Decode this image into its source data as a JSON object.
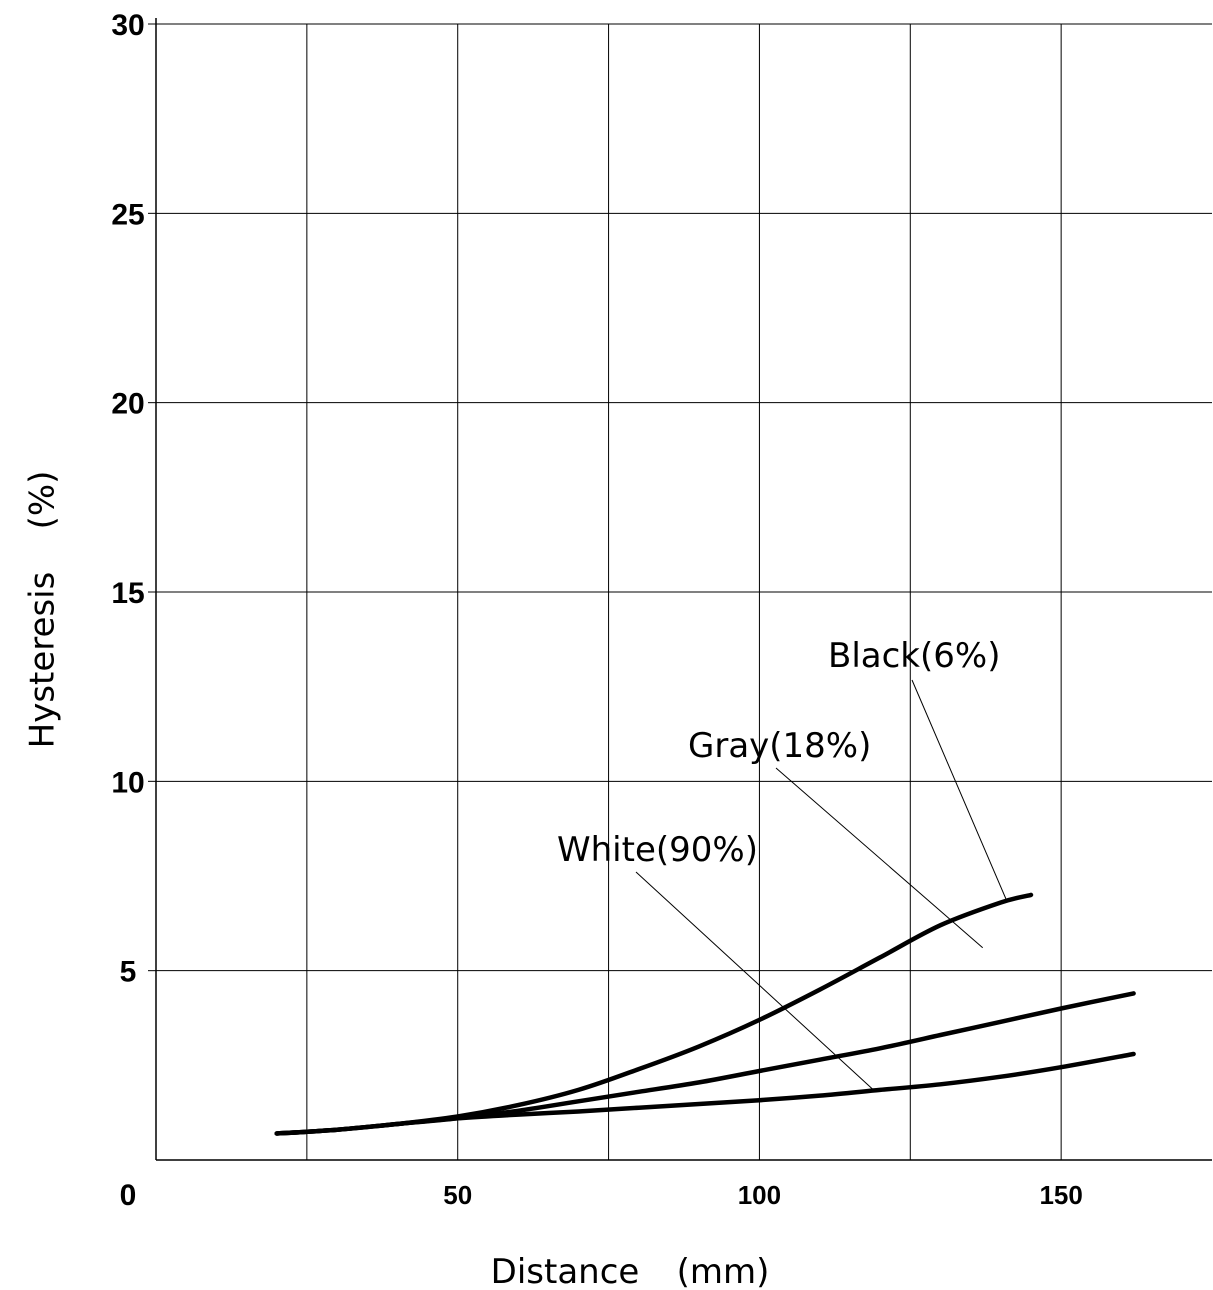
{
  "chart_data": {
    "type": "line",
    "xlabel": "Distance",
    "xunit": "(mm)",
    "ylabel": "Hysteresis",
    "yunit": "(%)",
    "xlim": [
      0,
      175
    ],
    "ylim": [
      0,
      30
    ],
    "x_ticks": [
      50,
      100,
      150
    ],
    "y_ticks": [
      30,
      25,
      20,
      15,
      10,
      5
    ],
    "origin_label": "0",
    "grid": true,
    "series": [
      {
        "name": "Black(6%)",
        "x": [
          20,
          30,
          40,
          50,
          60,
          70,
          80,
          90,
          100,
          110,
          120,
          130,
          140,
          145
        ],
        "y": [
          0.7,
          0.8,
          0.95,
          1.15,
          1.45,
          1.85,
          2.4,
          3.0,
          3.7,
          4.5,
          5.35,
          6.2,
          6.8,
          7.0
        ]
      },
      {
        "name": "Gray(18%)",
        "x": [
          20,
          30,
          40,
          50,
          60,
          70,
          80,
          90,
          100,
          110,
          120,
          130,
          140,
          150,
          162
        ],
        "y": [
          0.7,
          0.8,
          0.95,
          1.1,
          1.3,
          1.55,
          1.8,
          2.05,
          2.35,
          2.65,
          2.95,
          3.3,
          3.65,
          4.0,
          4.4
        ]
      },
      {
        "name": "White(90%)",
        "x": [
          20,
          30,
          40,
          50,
          60,
          70,
          80,
          90,
          100,
          110,
          120,
          130,
          140,
          150,
          162
        ],
        "y": [
          0.7,
          0.8,
          0.95,
          1.1,
          1.2,
          1.28,
          1.38,
          1.48,
          1.58,
          1.7,
          1.85,
          2.0,
          2.2,
          2.45,
          2.8
        ]
      }
    ]
  }
}
